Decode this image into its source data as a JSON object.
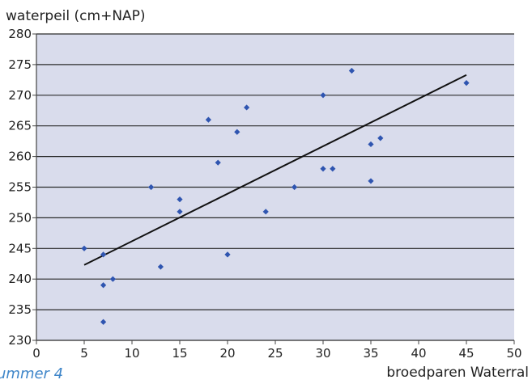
{
  "caption": "ummer 4",
  "chart_data": {
    "type": "scatter",
    "ylabel": "waterpeil (cm+NAP)",
    "xlabel": "broedparen Waterral",
    "xlim": [
      0,
      50
    ],
    "ylim": [
      230,
      280
    ],
    "xticks": [
      "0",
      "5",
      "10",
      "15",
      "20",
      "25",
      "30",
      "35",
      "40",
      "45",
      "50"
    ],
    "yticks": [
      "230",
      "235",
      "240",
      "245",
      "250",
      "255",
      "260",
      "265",
      "270",
      "275",
      "280"
    ],
    "grid": "horizontal",
    "series": [
      {
        "type": "scatter",
        "points": [
          [
            5,
            245
          ],
          [
            7,
            244
          ],
          [
            7,
            239
          ],
          [
            7,
            233
          ],
          [
            8,
            240
          ],
          [
            12,
            255
          ],
          [
            13,
            242
          ],
          [
            15,
            253
          ],
          [
            15,
            251
          ],
          [
            18,
            266
          ],
          [
            19,
            259
          ],
          [
            20,
            244
          ],
          [
            21,
            264
          ],
          [
            22,
            268
          ],
          [
            24,
            251
          ],
          [
            27,
            255
          ],
          [
            30,
            270
          ],
          [
            30,
            258
          ],
          [
            31,
            258
          ],
          [
            33,
            274
          ],
          [
            35,
            262
          ],
          [
            35,
            256
          ],
          [
            36,
            263
          ],
          [
            45,
            272
          ]
        ]
      },
      {
        "type": "trendline",
        "points": [
          [
            5,
            242.3
          ],
          [
            45,
            273.3
          ]
        ]
      }
    ],
    "colors": {
      "plot_bg": "#d9dcec",
      "grid": "#2b2b2b",
      "point": "#2f55b0",
      "trend": "#111111"
    }
  }
}
